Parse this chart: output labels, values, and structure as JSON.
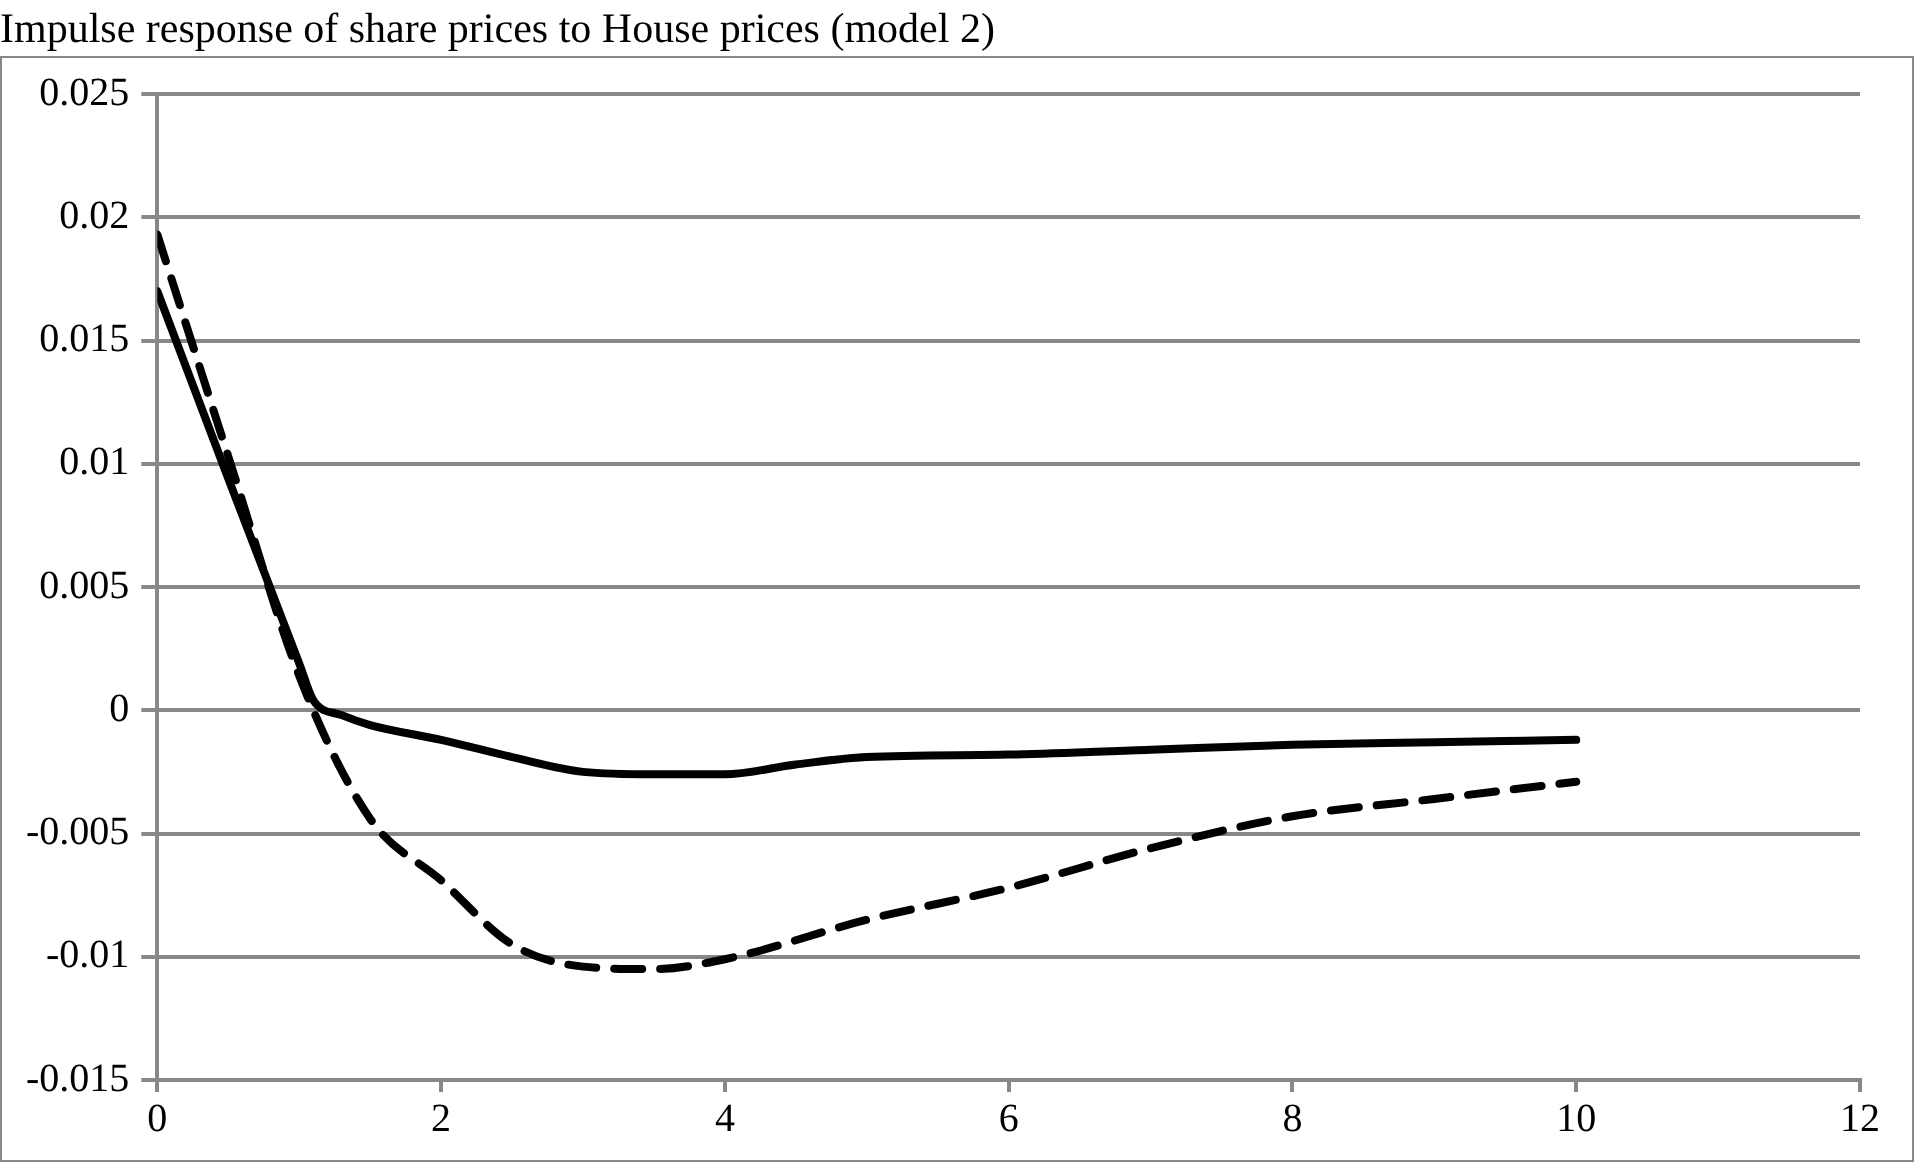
{
  "chart_data": {
    "type": "line",
    "title": "Impulse response of share prices to House prices (model 2)",
    "xlim": [
      0,
      12
    ],
    "xticks": [
      0,
      2,
      4,
      6,
      8,
      10,
      12
    ],
    "ylim": [
      -0.015,
      0.025
    ],
    "yticks": [
      -0.015,
      -0.01,
      -0.005,
      0,
      0.005,
      0.01,
      0.015,
      0.02,
      0.025
    ],
    "grid": "y",
    "legend": false,
    "marker": "none",
    "series": [
      {
        "color": "#000000",
        "line_style": "solid",
        "x": [
          0,
          0.5,
          1,
          1.1,
          1.3,
          1.5,
          2,
          2.5,
          3,
          3.5,
          4,
          4.5,
          5,
          6,
          7,
          8,
          9,
          10
        ],
        "values": [
          0.017,
          0.0094,
          0.0019,
          0.0004,
          -0.0002,
          -0.0006,
          -0.0012,
          -0.0019,
          -0.0025,
          -0.0026,
          -0.0026,
          -0.0022,
          -0.0019,
          -0.0018,
          -0.0016,
          -0.0014,
          -0.0013,
          -0.0012
        ]
      },
      {
        "color": "#000000",
        "line_style": "dashed",
        "x": [
          0,
          0.5,
          1,
          1.5,
          2,
          2.5,
          3,
          3.5,
          4,
          5,
          6,
          7,
          8,
          9,
          10
        ],
        "values": [
          0.0193,
          0.0103,
          0.0014,
          -0.0044,
          -0.0069,
          -0.0095,
          -0.0104,
          -0.0105,
          -0.0101,
          -0.0085,
          -0.0072,
          -0.0056,
          -0.0043,
          -0.0036,
          -0.0029
        ]
      }
    ]
  }
}
